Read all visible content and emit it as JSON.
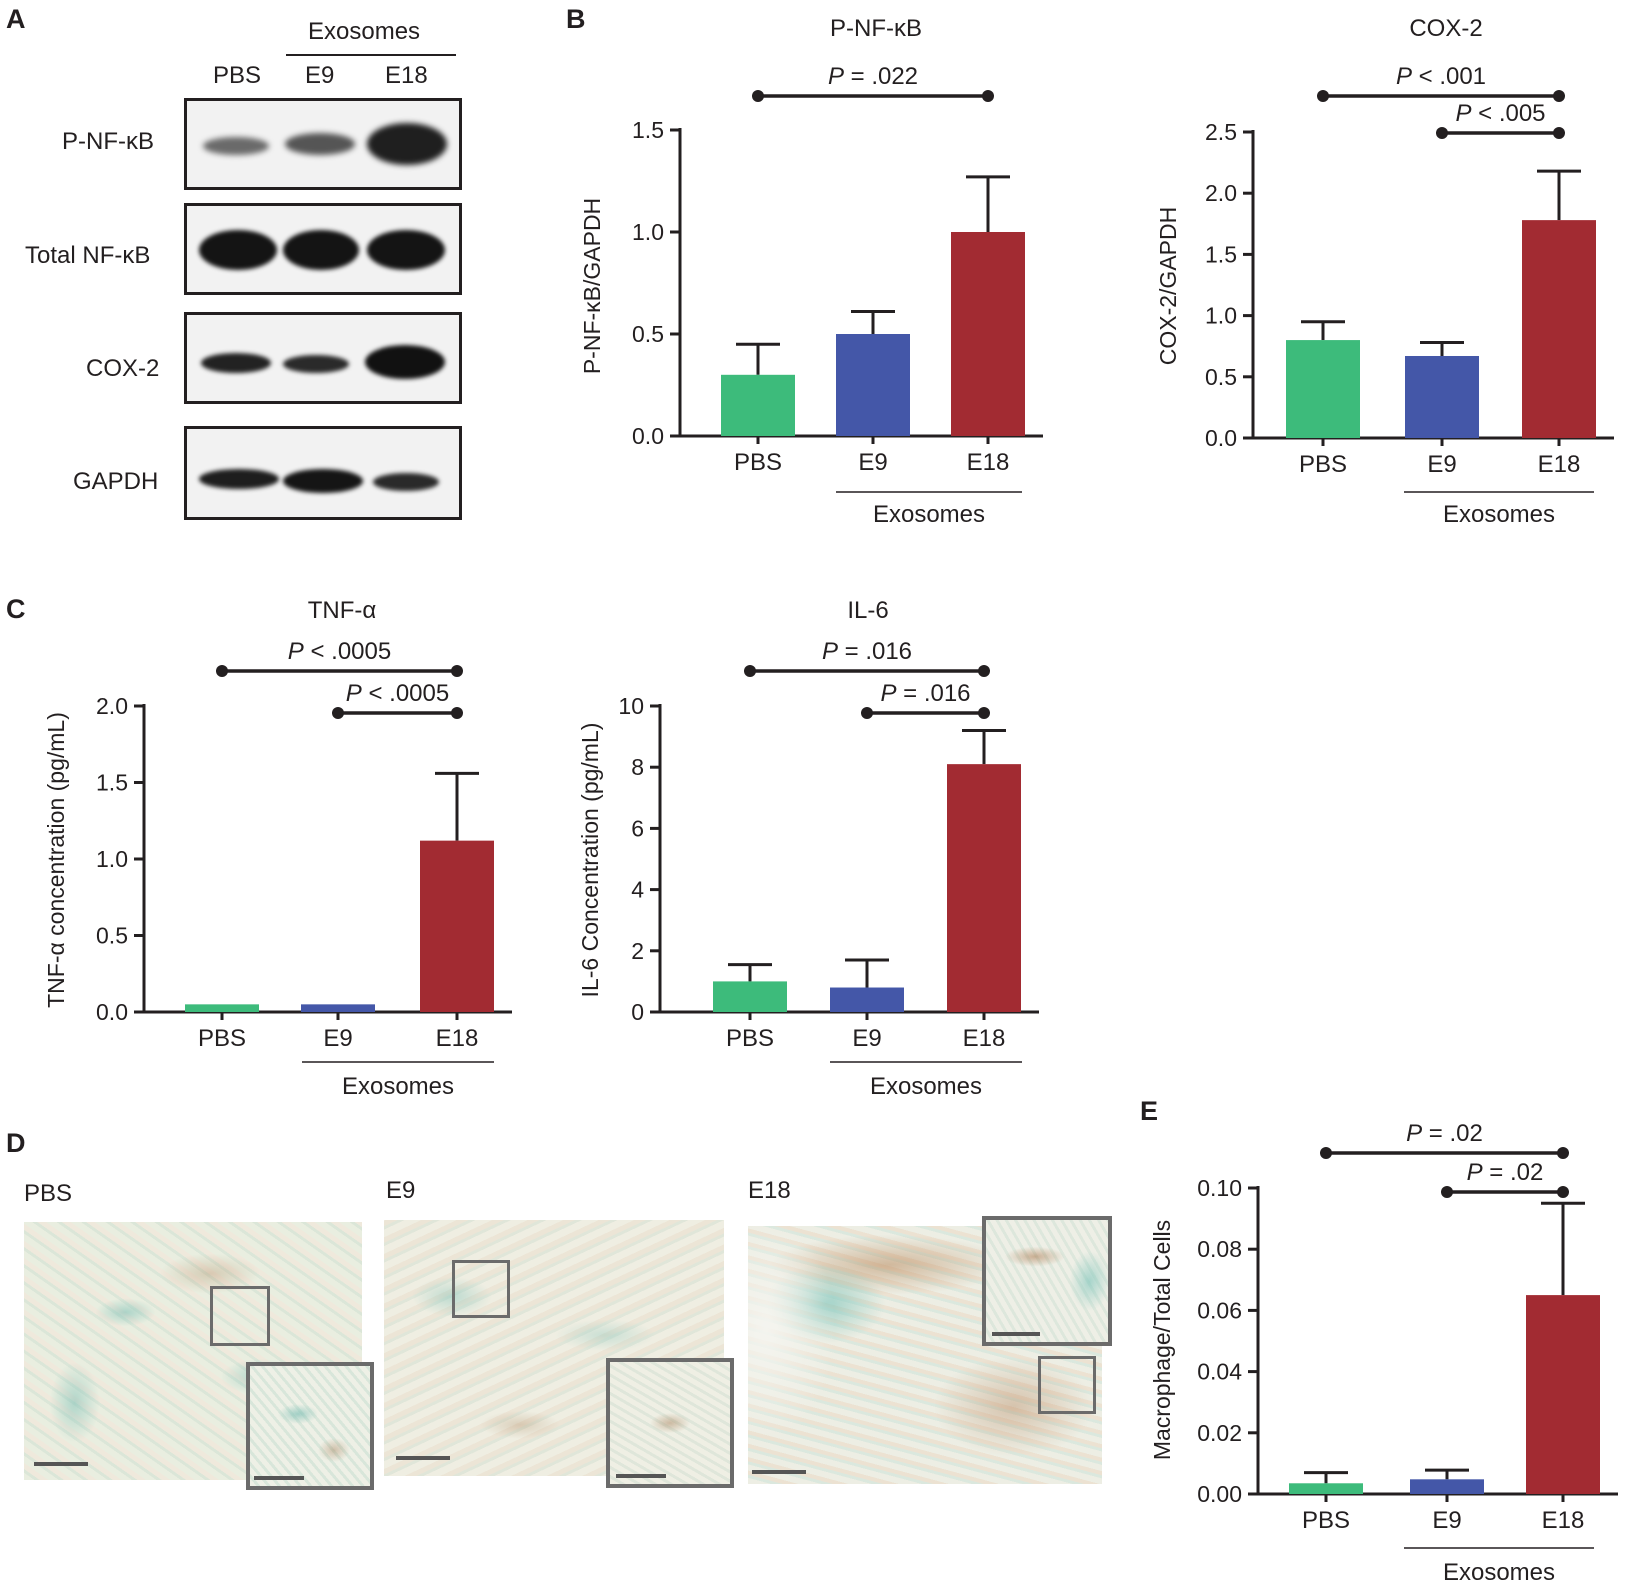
{
  "panels": {
    "A": "A",
    "B": "B",
    "C": "C",
    "D": "D",
    "E": "E"
  },
  "colors": {
    "PBS": "#3dbb7b",
    "E9": "#4457a8",
    "E18": "#a22b32",
    "axis": "#231f20",
    "tissue_bg": "#e8ecdf"
  },
  "blot": {
    "group_label": "Exosomes",
    "lanes": [
      "PBS",
      "E9",
      "E18"
    ],
    "rows": [
      "P-NF-κB",
      "Total NF-κB",
      "COX-2",
      "GAPDH"
    ]
  },
  "group_label": "Exosomes",
  "chart_data": [
    {
      "id": "pnfkb",
      "type": "bar",
      "title": "P-NF-κB",
      "ylabel": "P-NF-κB/GAPDH",
      "xlabel": "",
      "categories": [
        "PBS",
        "E9",
        "E18"
      ],
      "values": [
        0.3,
        0.5,
        1.0
      ],
      "errors": [
        0.15,
        0.11,
        0.27
      ],
      "ylim": [
        0,
        1.5
      ],
      "yticks": [
        0.0,
        0.5,
        1.0,
        1.5
      ],
      "ytick_labels": [
        "0.0",
        "0.5",
        "1.0",
        "1.5"
      ],
      "comparisons": [
        {
          "from": "PBS",
          "to": "E18",
          "p_symbol": "P",
          "text": "= .022"
        }
      ]
    },
    {
      "id": "cox2",
      "type": "bar",
      "title": "COX-2",
      "ylabel": "COX-2/GAPDH",
      "xlabel": "",
      "categories": [
        "PBS",
        "E9",
        "E18"
      ],
      "values": [
        0.8,
        0.67,
        1.78
      ],
      "errors": [
        0.15,
        0.11,
        0.4
      ],
      "ylim": [
        0,
        2.5
      ],
      "yticks": [
        0.0,
        0.5,
        1.0,
        1.5,
        2.0,
        2.5
      ],
      "ytick_labels": [
        "0.0",
        "0.5",
        "1.0",
        "1.5",
        "2.0",
        "2.5"
      ],
      "comparisons": [
        {
          "from": "PBS",
          "to": "E18",
          "p_symbol": "P",
          "text": "< .001"
        },
        {
          "from": "E9",
          "to": "E18",
          "p_symbol": "P",
          "text": "< .005"
        }
      ]
    },
    {
      "id": "tnfa",
      "type": "bar",
      "title": "TNF-α",
      "ylabel": "TNF-α concentration (pg/mL)",
      "xlabel": "",
      "categories": [
        "PBS",
        "E9",
        "E18"
      ],
      "values": [
        0.05,
        0.05,
        1.12
      ],
      "errors": [
        0,
        0,
        0.44
      ],
      "ylim": [
        0,
        2.0
      ],
      "yticks": [
        0.0,
        0.5,
        1.0,
        1.5,
        2.0
      ],
      "ytick_labels": [
        "0.0",
        "0.5",
        "1.0",
        "1.5",
        "2.0"
      ],
      "comparisons": [
        {
          "from": "PBS",
          "to": "E18",
          "p_symbol": "P",
          "text": "< .0005"
        },
        {
          "from": "E9",
          "to": "E18",
          "p_symbol": "P",
          "text": "< .0005"
        }
      ]
    },
    {
      "id": "il6",
      "type": "bar",
      "title": "IL-6",
      "ylabel": "IL-6 Concentration (pg/mL)",
      "xlabel": "",
      "categories": [
        "PBS",
        "E9",
        "E18"
      ],
      "values": [
        1.0,
        0.8,
        8.1
      ],
      "errors": [
        0.55,
        0.9,
        1.1
      ],
      "ylim": [
        0,
        10
      ],
      "yticks": [
        0,
        2,
        4,
        6,
        8,
        10
      ],
      "ytick_labels": [
        "0",
        "2",
        "4",
        "6",
        "8",
        "10"
      ],
      "comparisons": [
        {
          "from": "PBS",
          "to": "E18",
          "p_symbol": "P",
          "text": "= .016"
        },
        {
          "from": "E9",
          "to": "E18",
          "p_symbol": "P",
          "text": "= .016"
        }
      ]
    },
    {
      "id": "macro",
      "type": "bar",
      "title": "",
      "ylabel": "Macrophage/Total Cells",
      "xlabel": "",
      "categories": [
        "PBS",
        "E9",
        "E18"
      ],
      "values": [
        0.0035,
        0.0048,
        0.065
      ],
      "errors": [
        0.0035,
        0.003,
        0.03
      ],
      "ylim": [
        0,
        0.1
      ],
      "yticks": [
        0.0,
        0.02,
        0.04,
        0.06,
        0.08,
        0.1
      ],
      "ytick_labels": [
        "0.00",
        "0.02",
        "0.04",
        "0.06",
        "0.08",
        "0.10"
      ],
      "comparisons": [
        {
          "from": "PBS",
          "to": "E18",
          "p_symbol": "P",
          "text": "= .02"
        },
        {
          "from": "E9",
          "to": "E18",
          "p_symbol": "P",
          "text": "= .02"
        }
      ]
    }
  ],
  "micrographs": [
    {
      "label": "PBS"
    },
    {
      "label": "E9"
    },
    {
      "label": "E18"
    }
  ]
}
